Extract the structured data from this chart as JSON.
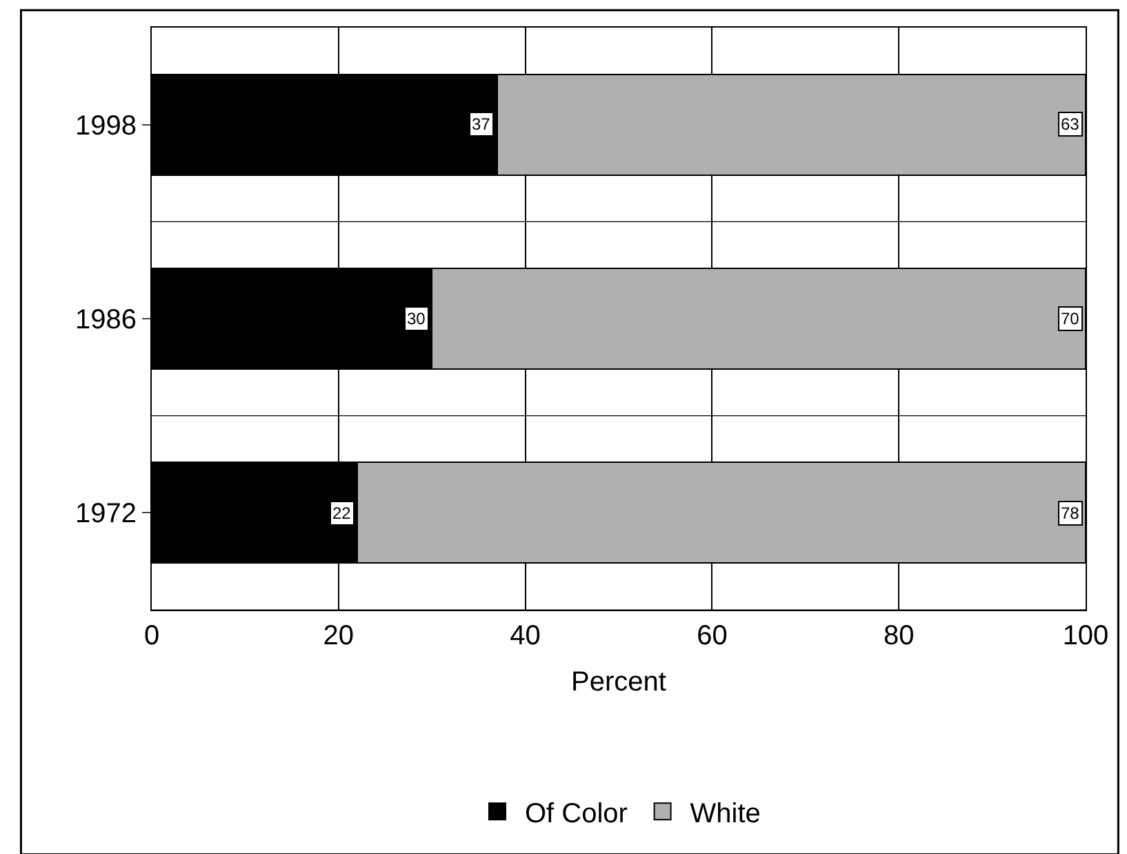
{
  "chart_data": {
    "type": "bar",
    "orientation": "horizontal",
    "stacked": true,
    "xlabel": "Percent",
    "categories": [
      "1998",
      "1986",
      "1972"
    ],
    "series": [
      {
        "name": "Of Color",
        "color": "#000000",
        "values": [
          37,
          30,
          22
        ]
      },
      {
        "name": "White",
        "color": "#b0b0b0",
        "values": [
          63,
          70,
          78
        ]
      }
    ],
    "xlim": [
      0,
      100
    ],
    "xticks": [
      0,
      20,
      40,
      60,
      80,
      100
    ],
    "grid": true,
    "legend": "bottom",
    "data_labels": true
  }
}
